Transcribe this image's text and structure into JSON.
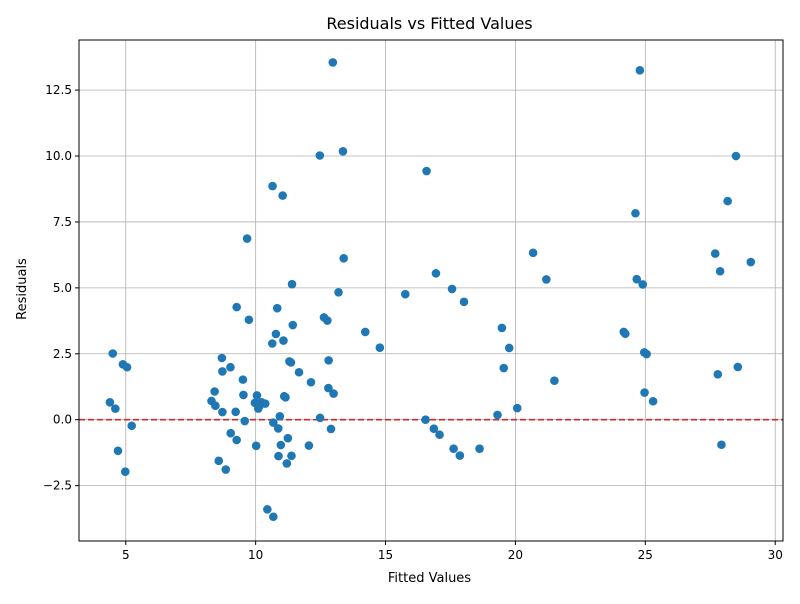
{
  "colors": {
    "point": "#1f77b4",
    "reference_line": "#d62728",
    "grid": "#b0b0b0",
    "axes": "#000000",
    "background": "#ffffff"
  },
  "chart_data": {
    "type": "scatter",
    "title": "Residuals vs Fitted Values",
    "xlabel": "Fitted Values",
    "ylabel": "Residuals",
    "xlim": [
      3.2,
      30.3
    ],
    "ylim": [
      -4.6,
      14.4
    ],
    "xticks": [
      5,
      10,
      15,
      20,
      25,
      30
    ],
    "xtick_labels": [
      "5",
      "10",
      "15",
      "20",
      "25",
      "30"
    ],
    "yticks": [
      -2.5,
      0,
      2.5,
      5,
      7.5,
      10,
      12.5
    ],
    "ytick_labels": [
      "−2.5",
      "0.0",
      "2.5",
      "5.0",
      "7.5",
      "10.0",
      "12.5"
    ],
    "grid": true,
    "reference_line": {
      "y": 0,
      "style": "dashed"
    },
    "points": [
      [
        12.97,
        13.55
      ],
      [
        24.79,
        13.25
      ],
      [
        12.47,
        10.02
      ],
      [
        13.36,
        10.18
      ],
      [
        28.49,
        10.0
      ],
      [
        16.58,
        9.43
      ],
      [
        10.65,
        8.86
      ],
      [
        11.04,
        8.5
      ],
      [
        28.17,
        8.29
      ],
      [
        24.62,
        7.83
      ],
      [
        9.67,
        6.87
      ],
      [
        20.68,
        6.33
      ],
      [
        27.69,
        6.3
      ],
      [
        13.39,
        6.12
      ],
      [
        29.06,
        5.98
      ],
      [
        27.88,
        5.63
      ],
      [
        16.94,
        5.55
      ],
      [
        24.67,
        5.33
      ],
      [
        21.19,
        5.32
      ],
      [
        11.4,
        5.14
      ],
      [
        24.9,
        5.13
      ],
      [
        17.56,
        4.96
      ],
      [
        13.19,
        4.83
      ],
      [
        15.76,
        4.76
      ],
      [
        18.02,
        4.47
      ],
      [
        9.27,
        4.27
      ],
      [
        10.83,
        4.23
      ],
      [
        12.63,
        3.88
      ],
      [
        12.76,
        3.76
      ],
      [
        9.74,
        3.79
      ],
      [
        11.43,
        3.59
      ],
      [
        19.48,
        3.48
      ],
      [
        14.22,
        3.33
      ],
      [
        24.17,
        3.33
      ],
      [
        24.23,
        3.26
      ],
      [
        10.78,
        3.25
      ],
      [
        11.07,
        3.0
      ],
      [
        10.64,
        2.89
      ],
      [
        14.78,
        2.73
      ],
      [
        19.76,
        2.72
      ],
      [
        24.96,
        2.55
      ],
      [
        25.05,
        2.49
      ],
      [
        4.5,
        2.51
      ],
      [
        8.7,
        2.34
      ],
      [
        12.81,
        2.25
      ],
      [
        11.3,
        2.21
      ],
      [
        11.36,
        2.17
      ],
      [
        4.89,
        2.1
      ],
      [
        5.05,
        1.99
      ],
      [
        9.03,
        1.99
      ],
      [
        28.56,
        2.0
      ],
      [
        19.55,
        1.96
      ],
      [
        8.72,
        1.83
      ],
      [
        11.67,
        1.8
      ],
      [
        27.79,
        1.72
      ],
      [
        9.51,
        1.52
      ],
      [
        21.5,
        1.48
      ],
      [
        12.13,
        1.42
      ],
      [
        12.8,
        1.2
      ],
      [
        8.42,
        1.07
      ],
      [
        24.97,
        1.03
      ],
      [
        13.0,
        0.99
      ],
      [
        9.53,
        0.94
      ],
      [
        11.1,
        0.89
      ],
      [
        11.15,
        0.85
      ],
      [
        10.05,
        0.92
      ],
      [
        25.3,
        0.7
      ],
      [
        4.39,
        0.66
      ],
      [
        8.3,
        0.71
      ],
      [
        9.97,
        0.64
      ],
      [
        10.23,
        0.66
      ],
      [
        10.37,
        0.61
      ],
      [
        10.15,
        0.53
      ],
      [
        8.45,
        0.53
      ],
      [
        10.1,
        0.42
      ],
      [
        20.07,
        0.44
      ],
      [
        4.6,
        0.42
      ],
      [
        9.23,
        0.3
      ],
      [
        8.72,
        0.29
      ],
      [
        19.31,
        0.18
      ],
      [
        10.93,
        0.13
      ],
      [
        12.48,
        0.07
      ],
      [
        16.54,
        0.0
      ],
      [
        9.58,
        -0.05
      ],
      [
        10.68,
        -0.11
      ],
      [
        5.23,
        -0.23
      ],
      [
        16.86,
        -0.34
      ],
      [
        10.87,
        -0.33
      ],
      [
        12.9,
        -0.35
      ],
      [
        9.04,
        -0.51
      ],
      [
        17.08,
        -0.57
      ],
      [
        11.24,
        -0.7
      ],
      [
        9.27,
        -0.77
      ],
      [
        10.97,
        -0.96
      ],
      [
        12.05,
        -0.98
      ],
      [
        10.02,
        -0.99
      ],
      [
        27.93,
        -0.95
      ],
      [
        17.62,
        -1.1
      ],
      [
        18.62,
        -1.1
      ],
      [
        4.7,
        -1.18
      ],
      [
        17.86,
        -1.36
      ],
      [
        10.88,
        -1.38
      ],
      [
        11.38,
        -1.37
      ],
      [
        8.58,
        -1.56
      ],
      [
        11.2,
        -1.66
      ],
      [
        8.85,
        -1.89
      ],
      [
        4.98,
        -1.97
      ],
      [
        10.45,
        -3.4
      ],
      [
        10.68,
        -3.68
      ]
    ]
  }
}
